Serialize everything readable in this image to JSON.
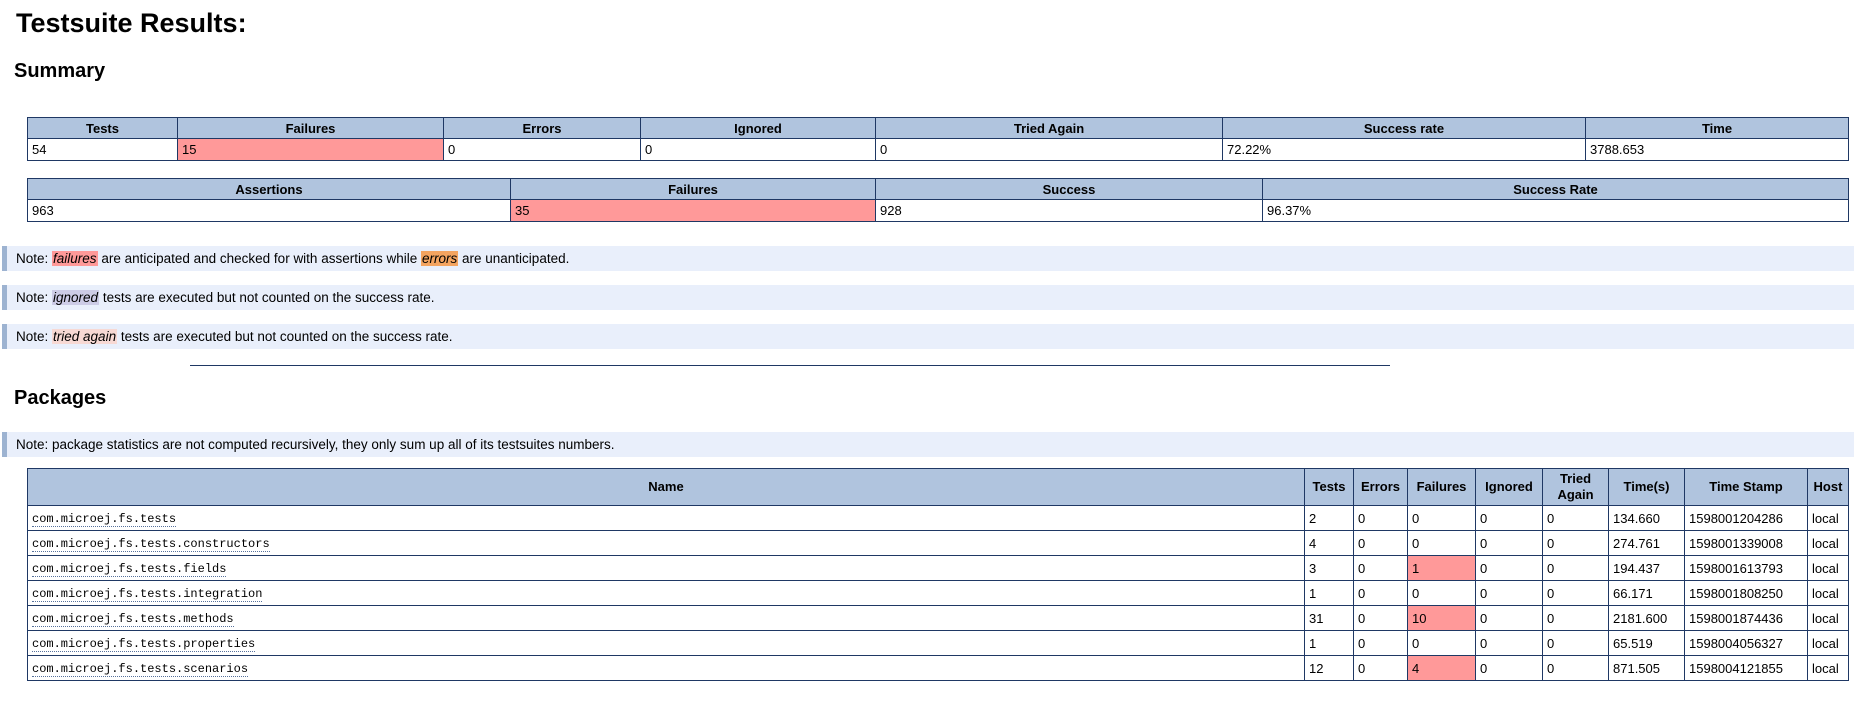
{
  "page": {
    "title": "Testsuite Results:"
  },
  "summary": {
    "heading": "Summary",
    "tests_table": {
      "headers": [
        "Tests",
        "Failures",
        "Errors",
        "Ignored",
        "Tried Again",
        "Success rate",
        "Time"
      ],
      "values": [
        "54",
        "15",
        "0",
        "0",
        "0",
        "72.22%",
        "3788.653"
      ],
      "failure_columns": [
        1
      ]
    },
    "assertions_table": {
      "headers": [
        "Assertions",
        "Failures",
        "Success",
        "Success Rate"
      ],
      "values": [
        "963",
        "35",
        "928",
        "96.37%"
      ],
      "failure_columns": [
        1
      ]
    },
    "notes": [
      {
        "segments": [
          {
            "t": "Note: "
          },
          {
            "t": "failures",
            "hl": "failures"
          },
          {
            "t": " are anticipated and checked for with assertions while "
          },
          {
            "t": "errors",
            "hl": "errors"
          },
          {
            "t": " are unanticipated."
          }
        ]
      },
      {
        "segments": [
          {
            "t": "Note: "
          },
          {
            "t": "ignored",
            "hl": "ignored"
          },
          {
            "t": " tests are executed but not counted on the success rate."
          }
        ]
      },
      {
        "segments": [
          {
            "t": "Note: "
          },
          {
            "t": "tried again",
            "hl": "tried-again"
          },
          {
            "t": " tests are executed but not counted on the success rate."
          }
        ]
      }
    ]
  },
  "packages": {
    "heading": "Packages",
    "note": "Note: package statistics are not computed recursively, they only sum up all of its testsuites numbers.",
    "table": {
      "headers": [
        "Name",
        "Tests",
        "Errors",
        "Failures",
        "Ignored",
        "Tried Again",
        "Time(s)",
        "Time Stamp",
        "Host"
      ],
      "rows": [
        {
          "name": "com.microej.fs.tests",
          "tests": "2",
          "errors": "0",
          "failures": "0",
          "ignored": "0",
          "tried_again": "0",
          "time_s": "134.660",
          "time_stamp": "1598001204286",
          "host": "local"
        },
        {
          "name": "com.microej.fs.tests.constructors",
          "tests": "4",
          "errors": "0",
          "failures": "0",
          "ignored": "0",
          "tried_again": "0",
          "time_s": "274.761",
          "time_stamp": "1598001339008",
          "host": "local"
        },
        {
          "name": "com.microej.fs.tests.fields",
          "tests": "3",
          "errors": "0",
          "failures": "1",
          "ignored": "0",
          "tried_again": "0",
          "time_s": "194.437",
          "time_stamp": "1598001613793",
          "host": "local"
        },
        {
          "name": "com.microej.fs.tests.integration",
          "tests": "1",
          "errors": "0",
          "failures": "0",
          "ignored": "0",
          "tried_again": "0",
          "time_s": "66.171",
          "time_stamp": "1598001808250",
          "host": "local"
        },
        {
          "name": "com.microej.fs.tests.methods",
          "tests": "31",
          "errors": "0",
          "failures": "10",
          "ignored": "0",
          "tried_again": "0",
          "time_s": "2181.600",
          "time_stamp": "1598001874436",
          "host": "local"
        },
        {
          "name": "com.microej.fs.tests.properties",
          "tests": "1",
          "errors": "0",
          "failures": "0",
          "ignored": "0",
          "tried_again": "0",
          "time_s": "65.519",
          "time_stamp": "1598004056327",
          "host": "local"
        },
        {
          "name": "com.microej.fs.tests.scenarios",
          "tests": "12",
          "errors": "0",
          "failures": "4",
          "ignored": "0",
          "tried_again": "0",
          "time_s": "871.505",
          "time_stamp": "1598004121855",
          "host": "local"
        }
      ]
    }
  },
  "colors": {
    "header_bg": "#b0c4de",
    "table_border": "#1f3864",
    "failure_highlight": "#ff9999",
    "error_highlight": "#f4a460",
    "ignored_highlight": "#cdcce6",
    "tried_again_highlight": "#f7d9d4",
    "note_bg": "#e9effb",
    "note_border": "#9db3d1"
  }
}
